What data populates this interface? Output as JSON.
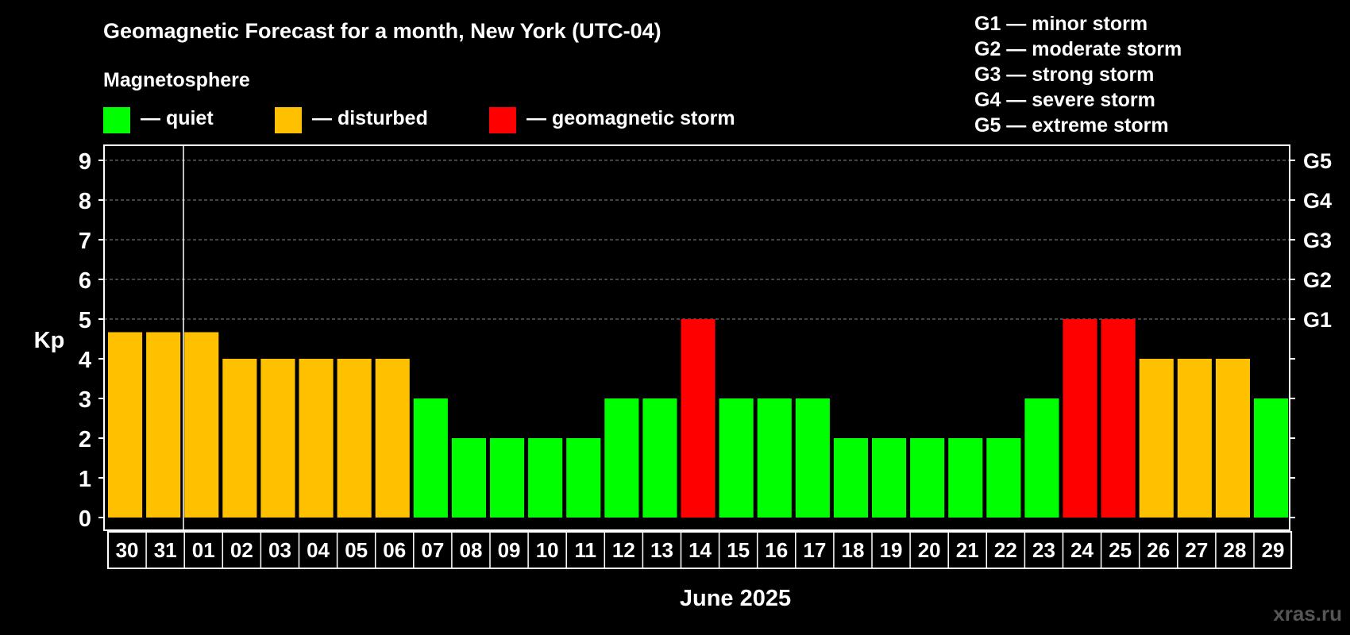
{
  "chart_data": {
    "type": "bar",
    "title": "Geomagnetic Forecast for a month, New York (UTC-04)",
    "xlabel": "June 2025",
    "ylabel": "Kp",
    "ylim": [
      0,
      9
    ],
    "yticks": [
      "0",
      "1",
      "2",
      "3",
      "4",
      "5",
      "6",
      "7",
      "8",
      "9"
    ],
    "right_ticks": [
      {
        "value": 5,
        "label": "G1"
      },
      {
        "value": 6,
        "label": "G2"
      },
      {
        "value": 7,
        "label": "G3"
      },
      {
        "value": 8,
        "label": "G4"
      },
      {
        "value": 9,
        "label": "G5"
      }
    ],
    "grid": "horizontal dashed from Kp 5 to 9",
    "categories": [
      "30",
      "31",
      "01",
      "02",
      "03",
      "04",
      "05",
      "06",
      "07",
      "08",
      "09",
      "10",
      "11",
      "12",
      "13",
      "14",
      "15",
      "16",
      "17",
      "18",
      "19",
      "20",
      "21",
      "22",
      "23",
      "24",
      "25",
      "26",
      "27",
      "28",
      "29"
    ],
    "values": [
      4.67,
      4.67,
      4.67,
      4,
      4,
      4,
      4,
      4,
      3,
      2,
      2,
      2,
      2,
      3,
      3,
      5,
      3,
      3,
      3,
      2,
      2,
      2,
      2,
      2,
      3,
      5,
      5,
      4,
      4,
      4,
      3
    ],
    "status": [
      "disturbed",
      "disturbed",
      "disturbed",
      "disturbed",
      "disturbed",
      "disturbed",
      "disturbed",
      "disturbed",
      "quiet",
      "quiet",
      "quiet",
      "quiet",
      "quiet",
      "quiet",
      "quiet",
      "storm",
      "quiet",
      "quiet",
      "quiet",
      "quiet",
      "quiet",
      "quiet",
      "quiet",
      "quiet",
      "quiet",
      "storm",
      "storm",
      "disturbed",
      "disturbed",
      "disturbed",
      "quiet"
    ],
    "colors": {
      "quiet": "#00ff00",
      "disturbed": "#ffc000",
      "storm": "#ff0000"
    },
    "legend_title": "Magnetosphere",
    "legend": [
      {
        "key": "quiet",
        "label": "— quiet"
      },
      {
        "key": "disturbed",
        "label": "— disturbed"
      },
      {
        "key": "storm",
        "label": "— geomagnetic storm"
      }
    ],
    "storm_scale": [
      "G1 — minor storm",
      "G2 — moderate storm",
      "G3 — strong storm",
      "G4 — severe storm",
      "G5 — extreme storm"
    ]
  },
  "watermark": "xras.ru"
}
